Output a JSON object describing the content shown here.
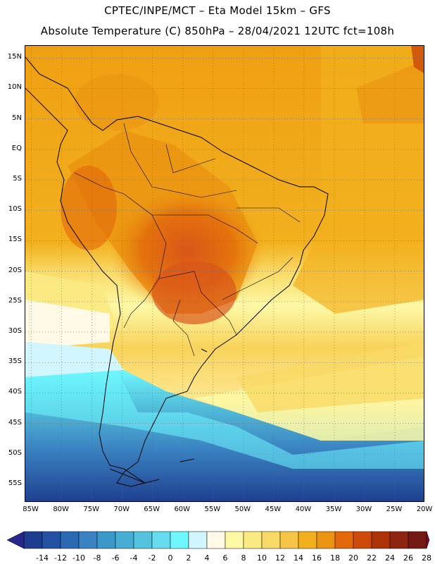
{
  "title": {
    "line1": "CPTEC/INPE/MCT –  Eta Model 15km – GFS",
    "line2": "Absolute Temperature (C) 850hPa – 28/04/2021 12UTC fct=108h"
  },
  "map": {
    "lat_labels": [
      "15N",
      "10N",
      "5N",
      "EQ",
      "5S",
      "10S",
      "15S",
      "20S",
      "25S",
      "30S",
      "35S",
      "40S",
      "45S",
      "50S",
      "55S"
    ],
    "lat_values": [
      15,
      10,
      5,
      0,
      -5,
      -10,
      -15,
      -20,
      -25,
      -30,
      -35,
      -40,
      -45,
      -50,
      -55
    ],
    "lon_labels": [
      "85W",
      "80W",
      "75W",
      "70W",
      "65W",
      "60W",
      "55W",
      "50W",
      "45W",
      "40W",
      "35W",
      "30W",
      "25W",
      "20W"
    ],
    "lon_values": [
      -85,
      -80,
      -75,
      -70,
      -65,
      -60,
      -55,
      -50,
      -45,
      -40,
      -35,
      -30,
      -25,
      -20
    ],
    "extent": {
      "lon_min": -86,
      "lon_max": -20,
      "lat_min": -58,
      "lat_max": 17
    },
    "gridlines": "dotted"
  },
  "colorbar": {
    "labels": [
      "-14",
      "-12",
      "-10",
      "-8",
      "-6",
      "-4",
      "-2",
      "0",
      "2",
      "4",
      "6",
      "8",
      "10",
      "12",
      "14",
      "16",
      "18",
      "20",
      "22",
      "24",
      "26",
      "28"
    ],
    "colors": [
      "#1d3e8e",
      "#2351a3",
      "#2b69b3",
      "#3a82c1",
      "#3b98c8",
      "#46aed2",
      "#55c3dd",
      "#66dcee",
      "#6ff7ff",
      "#d1f6ff",
      "#fff9e6",
      "#fdf8a6",
      "#fbe982",
      "#f9d965",
      "#f6c547",
      "#f2b01e",
      "#eb9412",
      "#e2680a",
      "#cd4a09",
      "#ae3208",
      "#8f2510",
      "#751a12"
    ],
    "low_arrow": "#25288a",
    "high_arrow": "#7a0f2a"
  }
}
